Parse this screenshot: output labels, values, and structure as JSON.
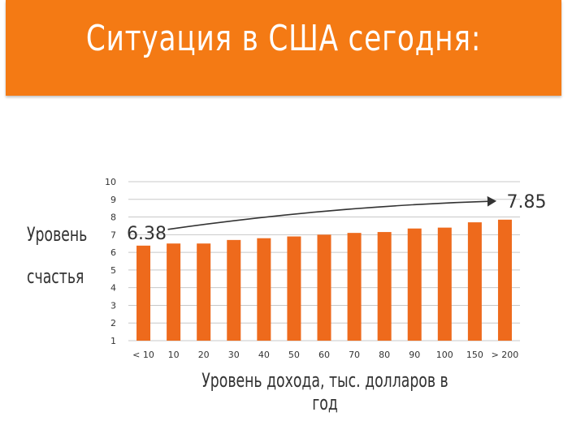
{
  "title": "Ситуация в США сегодня:",
  "ylabel_lines": [
    "Уровень",
    "счастья"
  ],
  "colors": {
    "banner": "#f47a14",
    "bar": "#ee6a1c",
    "grid": "#c8c8c8",
    "trend": "#333333"
  },
  "chart_data": {
    "type": "bar",
    "title": "",
    "xlabel": "Уровень дохода, тыс. долларов в год",
    "ylabel": "Уровень счастья",
    "categories": [
      "< 10",
      "10",
      "20",
      "30",
      "40",
      "50",
      "60",
      "70",
      "80",
      "90",
      "100",
      "150",
      "> 200"
    ],
    "values": [
      6.38,
      6.5,
      6.5,
      6.7,
      6.8,
      6.9,
      7.0,
      7.1,
      7.15,
      7.35,
      7.4,
      7.7,
      7.85
    ],
    "ylim": [
      1,
      10
    ],
    "yticks": [
      1,
      2,
      3,
      4,
      5,
      6,
      7,
      8,
      9,
      10
    ],
    "grid": true,
    "annotations": {
      "start_label": "6.38",
      "end_label": "7.85",
      "trend_from_value": 7.3,
      "trend_to_value": 8.9
    }
  }
}
